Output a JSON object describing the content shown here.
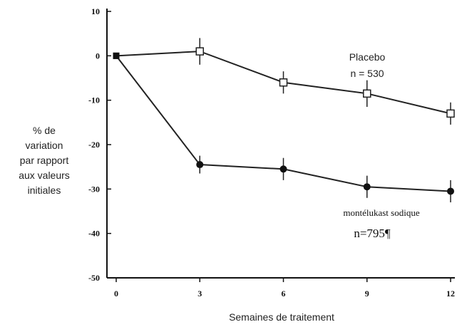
{
  "chart_data": {
    "type": "line",
    "xlabel": "Semaines de traitement",
    "ylabel_lines": [
      "% de",
      "variation",
      "par rapport",
      "aux valeurs",
      "initiales"
    ],
    "xlim": [
      0,
      12
    ],
    "ylim": [
      -50,
      10
    ],
    "x_ticks": [
      "0",
      "3",
      "6",
      "9",
      "12"
    ],
    "y_ticks": [
      "10",
      "0",
      "-10",
      "-20",
      "-30",
      "-40",
      "-50"
    ],
    "grid": false,
    "series": [
      {
        "name_lines": [
          "Placebo",
          "n = 530"
        ],
        "marker": "open-square",
        "color": "#222222",
        "x": [
          0,
          3,
          6,
          9,
          12
        ],
        "y": [
          0,
          1,
          -6,
          -8.5,
          -13
        ],
        "error": [
          0,
          3,
          2.5,
          3,
          2.5
        ]
      },
      {
        "name_lines": [
          "montélukast sodique",
          "n=795¶"
        ],
        "marker": "filled-circle",
        "color": "#222222",
        "x": [
          0,
          3,
          6,
          9,
          12
        ],
        "y": [
          0,
          -24.5,
          -25.5,
          -29.5,
          -30.5
        ],
        "error": [
          0,
          2,
          2.5,
          2.5,
          2.5
        ]
      }
    ]
  }
}
